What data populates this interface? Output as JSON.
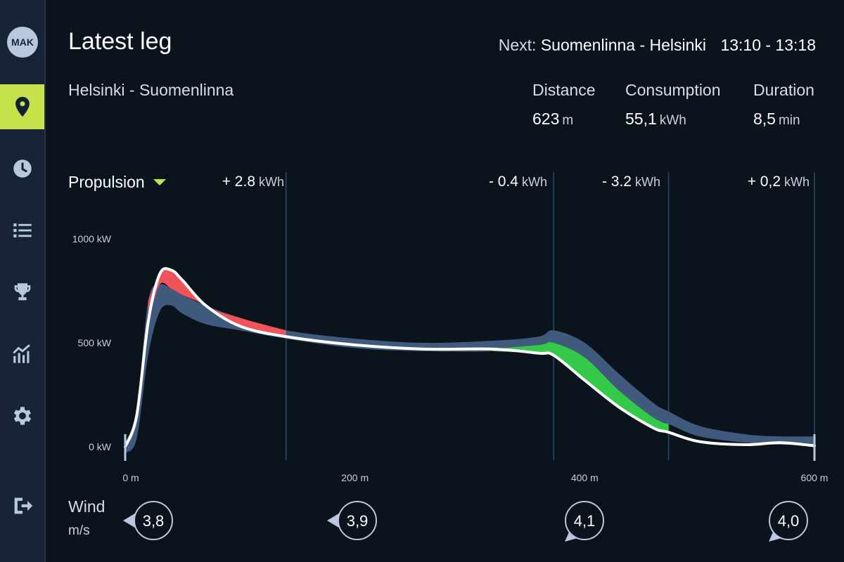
{
  "user": {
    "initials": "MAK"
  },
  "nav": {
    "items": [
      {
        "icon": "location-pin-icon",
        "active": true
      },
      {
        "icon": "clock-icon",
        "active": false
      },
      {
        "icon": "list-icon",
        "active": false
      },
      {
        "icon": "trophy-icon",
        "active": false
      },
      {
        "icon": "analytics-chart-icon",
        "active": false
      },
      {
        "icon": "gear-icon",
        "active": false
      },
      {
        "icon": "logout-icon",
        "active": false
      }
    ]
  },
  "header": {
    "title": "Latest leg",
    "next_label": "Next:",
    "next_route": "Suomenlinna - Helsinki",
    "next_time": "13:10 - 13:18",
    "route": "Helsinki - Suomenlinna"
  },
  "stats": {
    "distance": {
      "label": "Distance",
      "value": "623",
      "unit": "m"
    },
    "consumption": {
      "label": "Consumption",
      "value": "55,1",
      "unit": "kWh"
    },
    "duration": {
      "label": "Duration",
      "value": "8,5",
      "unit": "min"
    }
  },
  "section": {
    "dropdown": "Propulsion"
  },
  "segments": [
    {
      "value": "+ 2.8",
      "unit": "kWh"
    },
    {
      "value": "- 0.4",
      "unit": "kWh"
    },
    {
      "value": "- 3.2",
      "unit": "kWh"
    },
    {
      "value": "+ 0,2",
      "unit": "kWh"
    }
  ],
  "chart_data": {
    "type": "area",
    "xlabel": "",
    "ylabel": "",
    "x_ticks": [
      "0 m",
      "200 m",
      "400 m",
      "600 m"
    ],
    "y_ticks": [
      "1000 kW",
      "500 kW",
      "0 kW"
    ],
    "xlim": [
      0,
      600
    ],
    "ylim": [
      0,
      1000
    ],
    "segment_boundaries_m": [
      0,
      140,
      373,
      473,
      600
    ],
    "x": [
      0,
      10,
      20,
      30,
      40,
      50,
      70,
      100,
      140,
      200,
      260,
      320,
      360,
      373,
      400,
      430,
      460,
      473,
      500,
      540,
      570,
      600
    ],
    "series": [
      {
        "values": [
          0,
          150,
          600,
          830,
          850,
          800,
          680,
          580,
          530,
          490,
          470,
          470,
          450,
          440,
          320,
          190,
          90,
          70,
          25,
          10,
          20,
          5
        ]
      }
    ],
    "band_low": [
      -30,
      40,
      440,
      650,
      680,
      640,
      590,
      560,
      520,
      475,
      460,
      460,
      490,
      500,
      430,
      270,
      140,
      110,
      50,
      20,
      10,
      10
    ],
    "band_high": [
      20,
      180,
      700,
      780,
      760,
      730,
      680,
      620,
      560,
      520,
      500,
      510,
      530,
      560,
      500,
      350,
      210,
      170,
      100,
      60,
      50,
      50
    ],
    "colors": {
      "line": "#ffffff",
      "band": "#3f5a7d",
      "over": "#f0545a",
      "under": "#35c94a"
    }
  },
  "wind": {
    "label": "Wind",
    "unit": "m/s",
    "markers": [
      {
        "value": "3,8",
        "direction": "left"
      },
      {
        "value": "3,9",
        "direction": "left"
      },
      {
        "value": "4,1",
        "direction": "down-left"
      },
      {
        "value": "4,0",
        "direction": "down-left"
      }
    ]
  }
}
